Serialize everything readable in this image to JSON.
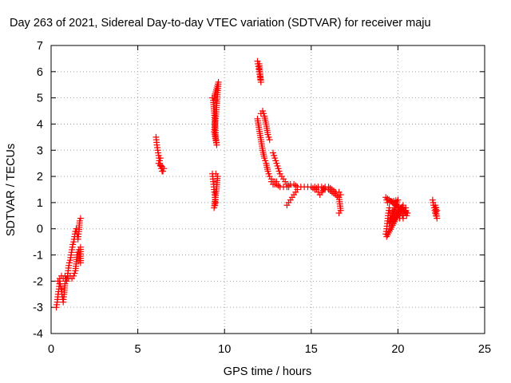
{
  "chart_data": {
    "type": "scatter",
    "title": "Day 263 of 2021, Sidereal Day-to-day VTEC variation (SDTVAR) for receiver maju",
    "xlabel": "GPS time / hours",
    "ylabel": "SDTVAR / TECUs",
    "xlim": [
      0,
      25
    ],
    "ylim": [
      -4,
      7
    ],
    "xticks": [
      0,
      5,
      10,
      15,
      20,
      25
    ],
    "yticks": [
      -4,
      -3,
      -2,
      -1,
      0,
      1,
      2,
      3,
      4,
      5,
      6,
      7
    ],
    "xtick_labels": [
      "0",
      "5",
      "10",
      "15",
      "20",
      "25"
    ],
    "ytick_labels": [
      "-4",
      "-3",
      "-2",
      "-1",
      "0",
      "1",
      "2",
      "3",
      "4",
      "5",
      "6",
      "7"
    ],
    "grid": true,
    "marker": "+",
    "marker_color": "#ff0000",
    "segments": [
      {
        "points": [
          [
            0.3,
            -3.0
          ],
          [
            0.35,
            -2.8
          ],
          [
            0.4,
            -2.5
          ],
          [
            0.45,
            -2.3
          ],
          [
            0.5,
            -2.0
          ],
          [
            0.55,
            -2.2
          ],
          [
            0.6,
            -2.4
          ],
          [
            0.65,
            -2.6
          ],
          [
            0.7,
            -2.8
          ],
          [
            0.75,
            -2.5
          ],
          [
            0.8,
            -2.1
          ],
          [
            0.85,
            -1.9
          ],
          [
            0.9,
            -2.0
          ],
          [
            0.95,
            -1.8
          ],
          [
            1.0,
            -1.5
          ],
          [
            1.05,
            -1.3
          ],
          [
            1.1,
            -1.2
          ],
          [
            1.15,
            -1.0
          ],
          [
            1.2,
            -0.8
          ],
          [
            1.25,
            -0.6
          ],
          [
            1.3,
            -0.5
          ],
          [
            1.35,
            -0.3
          ],
          [
            1.4,
            -0.1
          ],
          [
            1.45,
            0.0
          ],
          [
            1.5,
            -0.2
          ],
          [
            1.55,
            -0.4
          ],
          [
            1.6,
            -0.1
          ],
          [
            1.65,
            0.3
          ],
          [
            1.7,
            0.4
          ]
        ]
      },
      {
        "points": [
          [
            0.4,
            -2.0
          ],
          [
            0.5,
            -1.9
          ],
          [
            0.6,
            -1.8
          ],
          [
            0.7,
            -1.9
          ],
          [
            0.8,
            -1.8
          ],
          [
            0.9,
            -1.9
          ],
          [
            1.0,
            -1.9
          ],
          [
            1.1,
            -1.8
          ],
          [
            1.2,
            -1.9
          ],
          [
            1.3,
            -1.8
          ],
          [
            1.4,
            -1.6
          ],
          [
            1.5,
            -1.0
          ],
          [
            1.6,
            -0.8
          ],
          [
            1.7,
            -1.3
          ],
          [
            1.7,
            -0.7
          ]
        ]
      },
      {
        "points": [
          [
            6.05,
            3.5
          ],
          [
            6.1,
            3.2
          ],
          [
            6.15,
            3.0
          ],
          [
            6.2,
            2.8
          ],
          [
            6.25,
            2.6
          ],
          [
            6.3,
            2.4
          ],
          [
            6.35,
            2.3
          ],
          [
            6.4,
            2.2
          ],
          [
            6.45,
            2.2
          ],
          [
            6.5,
            2.3
          ],
          [
            6.2,
            2.5
          ],
          [
            6.3,
            2.7
          ]
        ]
      },
      {
        "points": [
          [
            9.3,
            5.0
          ],
          [
            9.35,
            4.9
          ],
          [
            9.4,
            4.5
          ],
          [
            9.45,
            4.0
          ],
          [
            9.5,
            3.5
          ],
          [
            9.55,
            3.2
          ],
          [
            9.4,
            3.7
          ],
          [
            9.5,
            4.3
          ],
          [
            9.6,
            5.2
          ],
          [
            9.65,
            5.6
          ],
          [
            9.4,
            5.0
          ],
          [
            9.55,
            4.8
          ]
        ]
      },
      {
        "points": [
          [
            9.3,
            2.1
          ],
          [
            9.35,
            1.8
          ],
          [
            9.4,
            1.5
          ],
          [
            9.45,
            1.2
          ],
          [
            9.5,
            1.0
          ],
          [
            9.4,
            0.8
          ],
          [
            9.55,
            1.6
          ],
          [
            9.6,
            2.0
          ],
          [
            9.5,
            2.1
          ]
        ]
      },
      {
        "points": [
          [
            11.9,
            6.4
          ],
          [
            11.95,
            6.2
          ],
          [
            12.0,
            6.0
          ],
          [
            12.05,
            5.8
          ],
          [
            12.1,
            5.6
          ],
          [
            12.0,
            6.3
          ]
        ]
      },
      {
        "points": [
          [
            11.9,
            4.2
          ],
          [
            12.0,
            3.8
          ],
          [
            12.1,
            3.4
          ],
          [
            12.2,
            3.0
          ],
          [
            12.3,
            2.7
          ],
          [
            12.4,
            2.5
          ],
          [
            12.5,
            2.2
          ],
          [
            12.6,
            2.0
          ],
          [
            12.7,
            1.9
          ],
          [
            12.8,
            1.8
          ],
          [
            12.9,
            1.8
          ],
          [
            13.0,
            1.8
          ]
        ]
      },
      {
        "points": [
          [
            12.1,
            4.4
          ],
          [
            12.2,
            4.5
          ],
          [
            12.3,
            4.3
          ],
          [
            12.4,
            4.0
          ],
          [
            12.5,
            3.6
          ],
          [
            12.6,
            3.4
          ]
        ]
      },
      {
        "points": [
          [
            12.8,
            2.9
          ],
          [
            12.9,
            2.7
          ],
          [
            13.0,
            2.5
          ],
          [
            13.1,
            2.3
          ],
          [
            13.2,
            2.1
          ],
          [
            13.3,
            2.0
          ],
          [
            13.4,
            1.9
          ],
          [
            13.5,
            1.8
          ],
          [
            13.6,
            1.7
          ],
          [
            13.7,
            1.6
          ]
        ]
      },
      {
        "points": [
          [
            12.7,
            1.8
          ],
          [
            12.8,
            1.7
          ],
          [
            12.9,
            1.7
          ],
          [
            13.0,
            1.7
          ],
          [
            13.2,
            1.6
          ],
          [
            13.4,
            1.6
          ],
          [
            13.6,
            1.6
          ],
          [
            13.8,
            1.7
          ],
          [
            14.0,
            1.7
          ],
          [
            14.2,
            1.6
          ],
          [
            14.4,
            1.6
          ],
          [
            14.6,
            1.6
          ],
          [
            14.8,
            1.6
          ],
          [
            15.0,
            1.6
          ],
          [
            15.2,
            1.5
          ],
          [
            15.4,
            1.6
          ],
          [
            15.6,
            1.6
          ],
          [
            15.8,
            1.5
          ],
          [
            16.0,
            1.5
          ],
          [
            16.2,
            1.4
          ],
          [
            16.4,
            1.3
          ],
          [
            16.6,
            1.2
          ],
          [
            16.7,
            0.7
          ],
          [
            16.6,
            0.6
          ]
        ]
      },
      {
        "points": [
          [
            13.6,
            0.9
          ],
          [
            13.7,
            1.0
          ],
          [
            13.8,
            1.1
          ],
          [
            13.9,
            1.2
          ],
          [
            14.0,
            1.3
          ],
          [
            14.1,
            1.4
          ],
          [
            14.2,
            1.5
          ]
        ]
      },
      {
        "points": [
          [
            15.2,
            1.6
          ],
          [
            15.3,
            1.5
          ],
          [
            15.4,
            1.4
          ],
          [
            15.5,
            1.3
          ],
          [
            15.6,
            1.4
          ],
          [
            15.8,
            1.6
          ],
          [
            16.0,
            1.6
          ],
          [
            16.2,
            1.5
          ],
          [
            16.4,
            1.4
          ],
          [
            16.6,
            1.4
          ],
          [
            16.7,
            1.3
          ]
        ]
      },
      {
        "points": [
          [
            19.3,
            -0.2
          ],
          [
            19.35,
            0.0
          ],
          [
            19.4,
            0.3
          ],
          [
            19.45,
            0.6
          ],
          [
            19.5,
            0.8
          ],
          [
            19.55,
            0.5
          ],
          [
            19.6,
            0.3
          ],
          [
            19.65,
            0.5
          ],
          [
            19.7,
            0.7
          ],
          [
            19.75,
            0.4
          ],
          [
            19.8,
            0.6
          ],
          [
            19.85,
            0.9
          ],
          [
            19.9,
            0.7
          ],
          [
            19.95,
            0.5
          ],
          [
            20.0,
            0.8
          ],
          [
            20.05,
            0.6
          ],
          [
            20.1,
            0.4
          ],
          [
            20.15,
            0.7
          ],
          [
            20.2,
            0.8
          ],
          [
            20.25,
            0.5
          ],
          [
            20.3,
            0.4
          ],
          [
            20.35,
            0.7
          ],
          [
            20.4,
            0.6
          ],
          [
            20.45,
            0.8
          ],
          [
            20.5,
            0.5
          ],
          [
            20.55,
            0.6
          ],
          [
            19.3,
            1.2
          ],
          [
            19.4,
            1.0
          ],
          [
            20.0,
            1.1
          ],
          [
            19.5,
            0.2
          ],
          [
            19.7,
            0.3
          ],
          [
            20.3,
            0.9
          ],
          [
            19.35,
            -0.3
          ]
        ]
      },
      {
        "points": [
          [
            22.0,
            1.1
          ],
          [
            22.05,
            0.9
          ],
          [
            22.1,
            0.8
          ],
          [
            22.15,
            0.6
          ],
          [
            22.2,
            0.5
          ],
          [
            22.25,
            0.4
          ],
          [
            22.15,
            0.9
          ],
          [
            22.25,
            0.7
          ]
        ]
      }
    ]
  }
}
